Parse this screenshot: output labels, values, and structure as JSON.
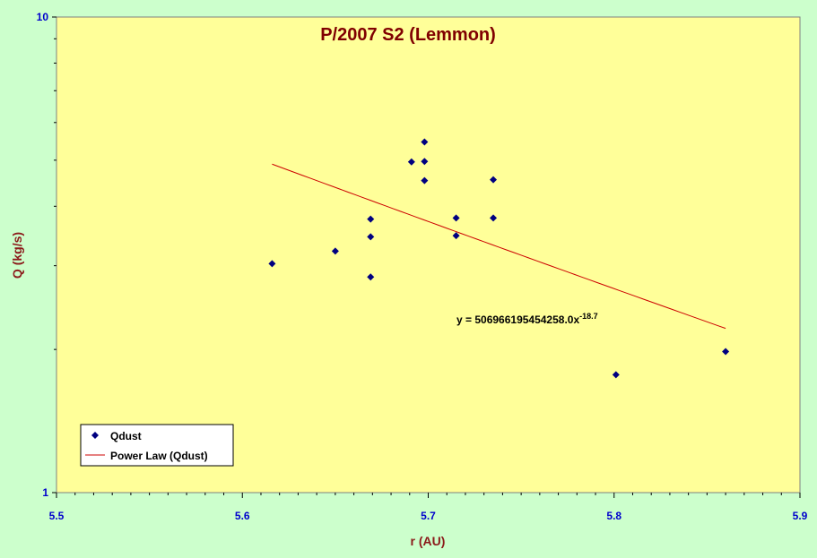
{
  "chart_data": {
    "type": "scatter",
    "title": "P/2007 S2 (Lemmon)",
    "xlabel": "r (AU)",
    "ylabel": "Q (kg/s)",
    "xlim": [
      5.5,
      5.9
    ],
    "ylim": [
      1,
      10
    ],
    "y_scale": "log",
    "x_ticks": [
      "5.5",
      "5.6",
      "5.7",
      "5.8",
      "5.9"
    ],
    "y_ticks": [
      "1",
      "10"
    ],
    "grid": false,
    "legend_position": "bottom-left",
    "series": [
      {
        "name": "Qdust",
        "marker": "diamond",
        "color": "#000080",
        "points": [
          [
            5.616,
            3.03
          ],
          [
            5.65,
            3.22
          ],
          [
            5.669,
            2.84
          ],
          [
            5.669,
            3.45
          ],
          [
            5.669,
            3.76
          ],
          [
            5.691,
            4.96
          ],
          [
            5.698,
            5.46
          ],
          [
            5.698,
            4.97
          ],
          [
            5.698,
            4.53
          ],
          [
            5.715,
            3.78
          ],
          [
            5.715,
            3.47
          ],
          [
            5.735,
            4.55
          ],
          [
            5.735,
            3.78
          ],
          [
            5.801,
            1.77
          ],
          [
            5.86,
            1.98
          ]
        ]
      }
    ],
    "trendline": {
      "name": "Power Law (Qdust)",
      "color": "#cc0000",
      "coefficient": 506966195454258.0,
      "exponent": -18.7,
      "x_range": [
        5.616,
        5.86
      ]
    },
    "equation": {
      "prefix": "y = 506966195454258.0x",
      "exponent": "-18.7"
    }
  }
}
